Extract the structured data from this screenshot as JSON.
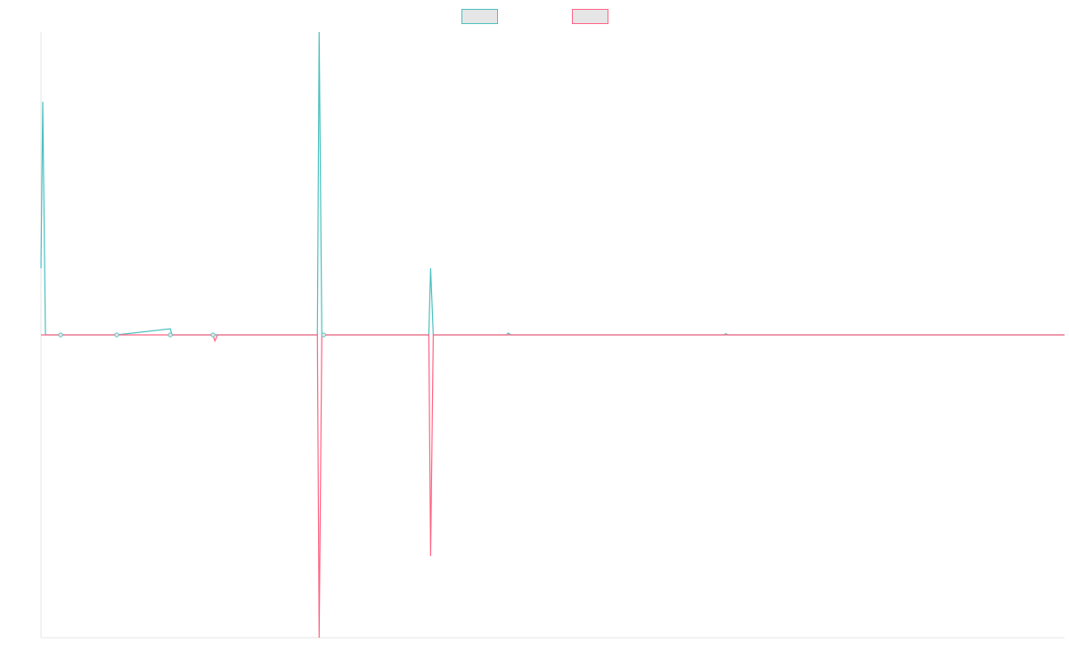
{
  "chart_data": {
    "type": "line",
    "title": "",
    "xlabel": "",
    "ylabel": "",
    "x": [
      0,
      1,
      2,
      3,
      4,
      5,
      6,
      7,
      8,
      9,
      10,
      11,
      12,
      13,
      14,
      15,
      16,
      17,
      18,
      19,
      20,
      21,
      22,
      23,
      24,
      25,
      26,
      27,
      28,
      29,
      30,
      31,
      32,
      33,
      34,
      35,
      36,
      37,
      38,
      39,
      40,
      41,
      42,
      43,
      44,
      45,
      46,
      47,
      48,
      49,
      50,
      51,
      52,
      53,
      54,
      55,
      56,
      57,
      58,
      59,
      60,
      61,
      62,
      63,
      64,
      65,
      66,
      67,
      68,
      69,
      70,
      71,
      72,
      73,
      74,
      75,
      76,
      77,
      78,
      79,
      80,
      81,
      82,
      83,
      84,
      85,
      86,
      87,
      88,
      89,
      90,
      91,
      92,
      93,
      94,
      95,
      96,
      97,
      98,
      99,
      100,
      101,
      102,
      103,
      104,
      105,
      106,
      107,
      108,
      109,
      110,
      111,
      112,
      113,
      114,
      115,
      116,
      117,
      118,
      119,
      120,
      121,
      122,
      123,
      124,
      125,
      126,
      127,
      128,
      129,
      130,
      131,
      132,
      133,
      134,
      135,
      136,
      137,
      138,
      139,
      140,
      141,
      142,
      143,
      144,
      145,
      146,
      147,
      148,
      149,
      150,
      151,
      152,
      153,
      154,
      155,
      156,
      157,
      158,
      159,
      160,
      161,
      162,
      163,
      164,
      165,
      166,
      167,
      168,
      169,
      170,
      171,
      172,
      173,
      174,
      175,
      176,
      177,
      178,
      179,
      180,
      181,
      182,
      183,
      184,
      185,
      186,
      187,
      188,
      189,
      190,
      191,
      192,
      193,
      194,
      195,
      196,
      197,
      198,
      199,
      200,
      201,
      202,
      203,
      204,
      205,
      206,
      207,
      208,
      209,
      210,
      211,
      212,
      213,
      214,
      215,
      216,
      217,
      218,
      219,
      220,
      221,
      222,
      223,
      224,
      225,
      226,
      227,
      228,
      229,
      230,
      231,
      232,
      233,
      234,
      235,
      236,
      237,
      238,
      239,
      240,
      241,
      242,
      243,
      244,
      245,
      246,
      247,
      248,
      249,
      250,
      251,
      252,
      253,
      254,
      255,
      256,
      257,
      258,
      259,
      260,
      261,
      262,
      263,
      264,
      265,
      266,
      267,
      268,
      269,
      270,
      271,
      272,
      273,
      274,
      275,
      276,
      277,
      278,
      279,
      280,
      281,
      282,
      283,
      284,
      285,
      286,
      287,
      288,
      289,
      290,
      291,
      292,
      293,
      294,
      295,
      296,
      297,
      298,
      299,
      300,
      301,
      302,
      303,
      304,
      305,
      306,
      307,
      308,
      309,
      310,
      311,
      312,
      313,
      314,
      315,
      316,
      317,
      318,
      319,
      320,
      321,
      322,
      323,
      324,
      325,
      326,
      327,
      328,
      329,
      330,
      331,
      332,
      333,
      334,
      335,
      336,
      337,
      338,
      339,
      340,
      341,
      342,
      343,
      344,
      345,
      346,
      347,
      348,
      349,
      350,
      351,
      352,
      353,
      354,
      355,
      356,
      357,
      358,
      359,
      360,
      361,
      362,
      363,
      364,
      365,
      366,
      367,
      368,
      369,
      370,
      371,
      372,
      373,
      374,
      375,
      376,
      377,
      378,
      379,
      380,
      381,
      382,
      383,
      384,
      385,
      386,
      387,
      388,
      389,
      390,
      391,
      392,
      393,
      394,
      395,
      396,
      397,
      398,
      399,
      400,
      401,
      402,
      403,
      404,
      405,
      406,
      407,
      408,
      409,
      410,
      411,
      412,
      413,
      414,
      415,
      416,
      417,
      418,
      419,
      420,
      421,
      422,
      423,
      424,
      425,
      426,
      427,
      428,
      429,
      430,
      431,
      432,
      433,
      434,
      435,
      436,
      437,
      438,
      439,
      440,
      441,
      442,
      443,
      444,
      445,
      446,
      447,
      448,
      449,
      450,
      451,
      452,
      453,
      454,
      455,
      456,
      457,
      458,
      459,
      460,
      461,
      462,
      463,
      464,
      465,
      466,
      467,
      468,
      469,
      470,
      471,
      472,
      473,
      474,
      475,
      476,
      477,
      478,
      479,
      480,
      481,
      482,
      483,
      484,
      485,
      486,
      487,
      488,
      489,
      490,
      491,
      492,
      493,
      494,
      495,
      496,
      497,
      498,
      499,
      500,
      501,
      502,
      503,
      504,
      505,
      506,
      507,
      508,
      509,
      510,
      511,
      512,
      513,
      514,
      515,
      516,
      517,
      518,
      519,
      520,
      521,
      522,
      523,
      524,
      525,
      526,
      527,
      528,
      529,
      530,
      531,
      532,
      533,
      534,
      535,
      536,
      537,
      538,
      539,
      540,
      541,
      542,
      543,
      544,
      545,
      546,
      547,
      548,
      549,
      550,
      551,
      552,
      553,
      554,
      555,
      556,
      557,
      558,
      559,
      560,
      561,
      562,
      563,
      564,
      565,
      566,
      567,
      568,
      569,
      570,
      571,
      572,
      573,
      574,
      575,
      576,
      577,
      578,
      579,
      580,
      581,
      582,
      583,
      584,
      585,
      586,
      587,
      588,
      589,
      590,
      591,
      592,
      593,
      594,
      595,
      596,
      597,
      598,
      599,
      600,
      601,
      602,
      603,
      604,
      605,
      606,
      607,
      608,
      609,
      610,
      611,
      612,
      613,
      614,
      615,
      616,
      617,
      618,
      619,
      620,
      621,
      622,
      623,
      624,
      625,
      626,
      627,
      628,
      629,
      630,
      631,
      632,
      633,
      634,
      635,
      636,
      637,
      638,
      639,
      640,
      641,
      642,
      643,
      644,
      645,
      646,
      647,
      648,
      649,
      650,
      651,
      652,
      653,
      654,
      655,
      656,
      657,
      658,
      659,
      660,
      661,
      662,
      663,
      664,
      665,
      666,
      667,
      668,
      669,
      670,
      671,
      672,
      673,
      674,
      675,
      676,
      677,
      678,
      679,
      680,
      681,
      682,
      683,
      684,
      685,
      686,
      687,
      688,
      689,
      690,
      691,
      692,
      693,
      694,
      695,
      696,
      697,
      698,
      699,
      700,
      701,
      702,
      703,
      704,
      705,
      706,
      707,
      708,
      709,
      710,
      711,
      712,
      713,
      714,
      715,
      716,
      717,
      718,
      719,
      720,
      721,
      722,
      723,
      724,
      725,
      726,
      727,
      728,
      729,
      730,
      731,
      732,
      733,
      734,
      735,
      736,
      737,
      738,
      739,
      740,
      741,
      742,
      743,
      744,
      745,
      746,
      747,
      748,
      749,
      750,
      751,
      752,
      753,
      754,
      755,
      756,
      757,
      758,
      759,
      760,
      761,
      762,
      763,
      764,
      765,
      766,
      767,
      768,
      769,
      770,
      771,
      772,
      773,
      774,
      775,
      776,
      777,
      778,
      779,
      780,
      781,
      782,
      783,
      784,
      785,
      786,
      787,
      788,
      789,
      790,
      791,
      792,
      793,
      794,
      795,
      796,
      797,
      798,
      799,
      800,
      801,
      802,
      803,
      804,
      805,
      806,
      807,
      808,
      809,
      810,
      811,
      812,
      813,
      814,
      815,
      816,
      817,
      818,
      819,
      820,
      821,
      822,
      823,
      824,
      825,
      826,
      827,
      828,
      829,
      830,
      831,
      832,
      833,
      834,
      835,
      836,
      837,
      838,
      839,
      840,
      841,
      842,
      843,
      844,
      845,
      846,
      847,
      848,
      849,
      850,
      851,
      852,
      853,
      854,
      855,
      856,
      857,
      858,
      859,
      860,
      861,
      862,
      863,
      864,
      865,
      866,
      867,
      868,
      869,
      870,
      871,
      872,
      873,
      874,
      875,
      876,
      877,
      878,
      879,
      880,
      881,
      882,
      883,
      884,
      885,
      886,
      887,
      888,
      889,
      890,
      891,
      892,
      893,
      894,
      895,
      896,
      897,
      898,
      899,
      900,
      901,
      902,
      903,
      904,
      905,
      906,
      907,
      908,
      909,
      910,
      911,
      912,
      913,
      914,
      915,
      916,
      917,
      918,
      919,
      920,
      921,
      922,
      923,
      924,
      925,
      926,
      927,
      928,
      929,
      930,
      931,
      932,
      933,
      934,
      935,
      936,
      937,
      938,
      939,
      940,
      941,
      942,
      943,
      944,
      945,
      946,
      947,
      948,
      949,
      950,
      951,
      952,
      953,
      954,
      955,
      956,
      957,
      958,
      959,
      960,
      961,
      962,
      963,
      964,
      965,
      966,
      967,
      968,
      969,
      970,
      971,
      972,
      973,
      974,
      975,
      976,
      977,
      978,
      979,
      980,
      981,
      982,
      983,
      984,
      985,
      986,
      987,
      988,
      989,
      990,
      991,
      992,
      993,
      994,
      995,
      996,
      997,
      998,
      999,
      1000,
      1001,
      1002,
      1003,
      1004,
      1005,
      1006,
      1007,
      1008,
      1009,
      1010,
      1011,
      1012,
      1013,
      1014,
      1015,
      1016,
      1017,
      1018,
      1019,
      1020,
      1021,
      1022,
      1023,
      1024,
      1025,
      1026,
      1027,
      1028,
      1029,
      1030,
      1031,
      1032,
      1033,
      1034,
      1035,
      1036,
      1037,
      1038,
      1039,
      1040,
      1041,
      1042,
      1043,
      1044,
      1045,
      1046,
      1047,
      1048,
      1049,
      1050,
      1051,
      1052,
      1053,
      1054,
      1055,
      1056,
      1057,
      1058,
      1059,
      1060,
      1061,
      1062,
      1063,
      1064,
      1065,
      1066,
      1067,
      1068,
      1069,
      1070,
      1071,
      1072,
      1073,
      1074,
      1075,
      1076,
      1077,
      1078,
      1079,
      1080,
      1081,
      1082,
      1083,
      1084,
      1085,
      1086,
      1087,
      1088,
      1089,
      1090,
      1091,
      1092,
      1093,
      1094,
      1095,
      1096,
      1097,
      1098,
      1099,
      1100,
      1101,
      1102,
      1103,
      1104,
      1105,
      1106,
      1107,
      1108,
      1109,
      1110,
      1111,
      1112,
      1113,
      1114,
      1115,
      1116,
      1117,
      1118,
      1119,
      1120,
      1121,
      1122,
      1123,
      1124,
      1125,
      1126,
      1127,
      1128,
      1129,
      1130,
      1131,
      1132,
      1133,
      1134,
      1135,
      1136,
      1137,
      1138,
      1139,
      1140,
      1141,
      1142,
      1143,
      1144,
      1145,
      1146,
      1147,
      1148
    ],
    "xlim": [
      0,
      1148
    ],
    "ylim": [
      -100,
      100
    ],
    "grid": false,
    "legend_position": "top-center",
    "series": [
      {
        "color": "#4bc0c0",
        "fill": "#e6e6e6",
        "points": [
          [
            0,
            22
          ],
          [
            2,
            77
          ],
          [
            5,
            0
          ],
          [
            22,
            0
          ],
          [
            85,
            0
          ],
          [
            145,
            2
          ],
          [
            147,
            0
          ],
          [
            193,
            0
          ],
          [
            195,
            0
          ],
          [
            310,
            0
          ],
          [
            312,
            100
          ],
          [
            315,
            0
          ],
          [
            435,
            0
          ],
          [
            437,
            22
          ],
          [
            440,
            0
          ],
          [
            522,
            0
          ],
          [
            524,
            0.6
          ],
          [
            527,
            0
          ],
          [
            766,
            0
          ],
          [
            768,
            0.4
          ],
          [
            771,
            0
          ],
          [
            1148,
            0
          ]
        ]
      },
      {
        "color": "#ff6384",
        "fill": "#e6e6e6",
        "points": [
          [
            0,
            0
          ],
          [
            5,
            0
          ],
          [
            22,
            0
          ],
          [
            85,
            0
          ],
          [
            145,
            0
          ],
          [
            147,
            0
          ],
          [
            193,
            0
          ],
          [
            195,
            -2
          ],
          [
            198,
            0
          ],
          [
            310,
            0
          ],
          [
            312,
            -100
          ],
          [
            315,
            0
          ],
          [
            435,
            0
          ],
          [
            437,
            -73
          ],
          [
            440,
            0
          ],
          [
            1148,
            0
          ]
        ]
      }
    ],
    "markers": [
      {
        "x": 22,
        "y": 0
      },
      {
        "x": 85,
        "y": 0
      },
      {
        "x": 145,
        "y": 0
      },
      {
        "x": 193,
        "y": 0
      },
      {
        "x": 317,
        "y": 0
      }
    ]
  }
}
